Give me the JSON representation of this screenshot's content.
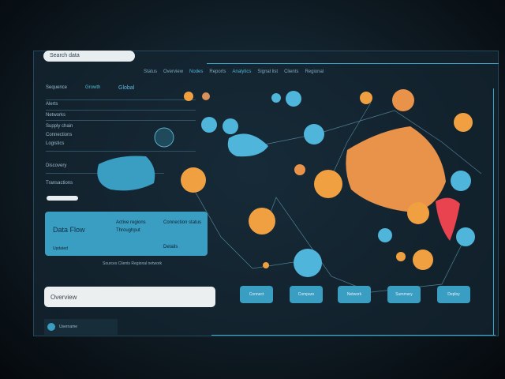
{
  "search": {
    "placeholder": "Search data"
  },
  "topnav": [
    "Status",
    "Overview",
    "Nodes",
    "Reports",
    "Analytics",
    "Signal list",
    "Clients",
    "Regional"
  ],
  "tabs": [
    "Sequence",
    "Growth",
    "Global"
  ],
  "sidebar": [
    "Alerts",
    "Networks",
    "Supply chain",
    "Connections",
    "Logistics",
    "Discovery",
    "Transactions"
  ],
  "card": {
    "title": "Data Flow",
    "line1": "Active regions",
    "line2": "Throughput",
    "line3": "Connection status",
    "meta": "Updated",
    "link": "Details"
  },
  "card_footer": "Sources  Clients  Regional network",
  "input2": {
    "value": "Overview"
  },
  "user": {
    "label": "Username"
  },
  "buttons": [
    "Connect",
    "Compare",
    "Network",
    "Summary",
    "Deploy"
  ],
  "colors": {
    "accent": "#3a9dc2",
    "orange": "#f0a040",
    "red": "#e8434e",
    "bg": "#142632"
  }
}
